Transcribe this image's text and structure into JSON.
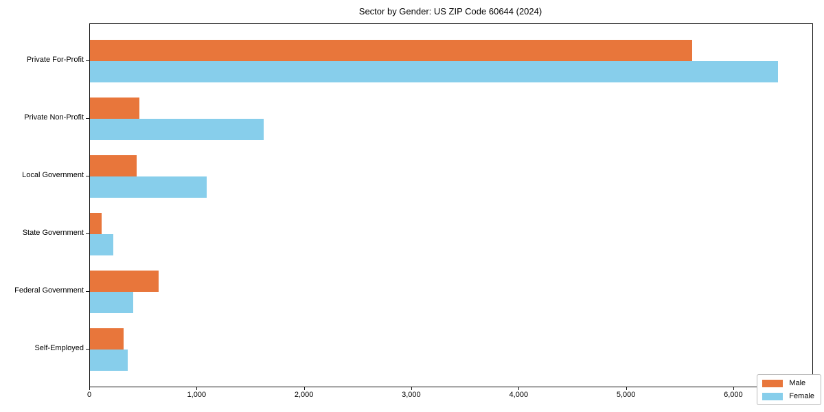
{
  "title": "Sector by Gender: US ZIP Code 60644 (2024)",
  "chart_data": {
    "type": "bar",
    "orientation": "horizontal",
    "title": "Sector by Gender: US ZIP Code 60644 (2024)",
    "categories": [
      "Private For-Profit",
      "Private Non-Profit",
      "Local Government",
      "State Government",
      "Federal Government",
      "Self-Employed"
    ],
    "series": [
      {
        "name": "Male",
        "color": "#E8763B",
        "values": [
          5610,
          460,
          435,
          108,
          638,
          312
        ]
      },
      {
        "name": "Female",
        "color": "#87CEEB",
        "values": [
          6410,
          1620,
          1085,
          218,
          402,
          350
        ]
      }
    ],
    "xlabel": "",
    "ylabel": "",
    "xlim": [
      0,
      6730
    ],
    "x_ticks": [
      0,
      1000,
      2000,
      3000,
      4000,
      5000,
      6000
    ],
    "x_tick_labels": [
      "0",
      "1,000",
      "2,000",
      "3,000",
      "4,000",
      "5,000",
      "6,000"
    ],
    "legend_position": "lower right",
    "grid": false,
    "frame": true
  },
  "legend": {
    "items": [
      {
        "label": "Male",
        "color": "#E8763B"
      },
      {
        "label": "Female",
        "color": "#87CEEB"
      }
    ]
  }
}
